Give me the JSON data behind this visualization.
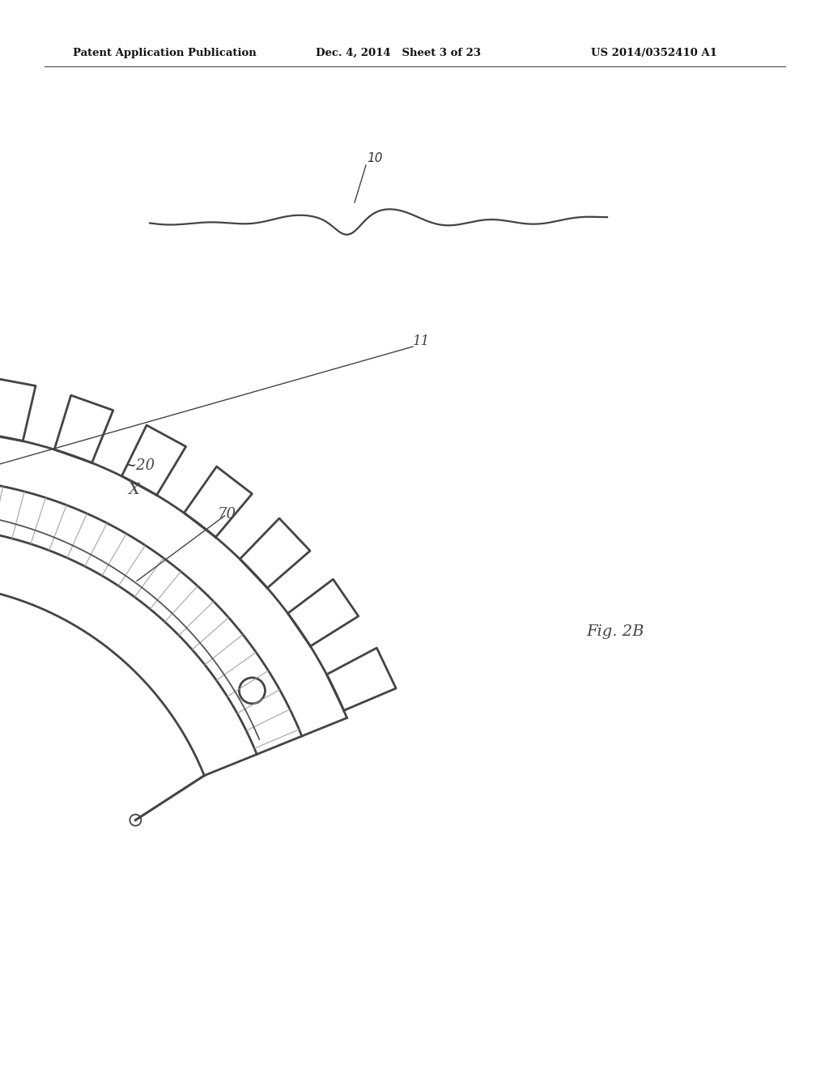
{
  "header_left": "Patent Application Publication",
  "header_mid": "Dec. 4, 2014   Sheet 3 of 23",
  "header_right": "US 2014/0352410 A1",
  "fig_label": "Fig. 2B",
  "label_10": "10",
  "label_20": "~20",
  "label_X": "X",
  "label_70": "70",
  "label_11": "11",
  "bg_color": "#ffffff",
  "line_color": "#444444",
  "hatch_color": "#888888"
}
